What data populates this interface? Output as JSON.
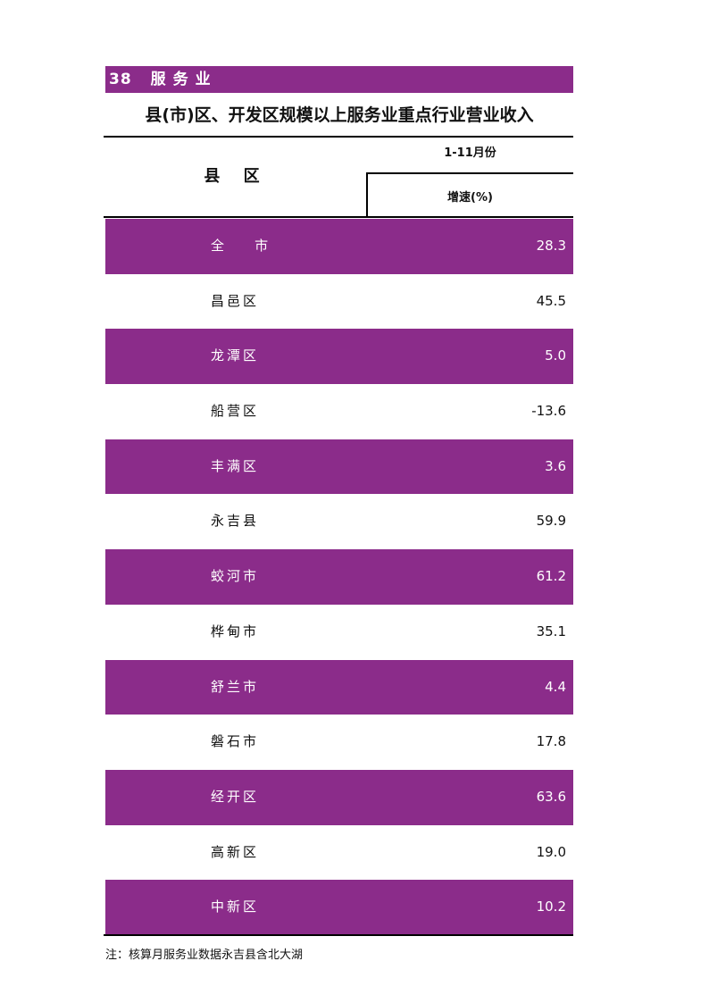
{
  "section": {
    "number": "38",
    "name": "服务业"
  },
  "title": "县(市)区、开发区规模以上服务业重点行业营业收入",
  "header": {
    "county": "县 区",
    "period": "1-11月份",
    "growth": "增速(%)"
  },
  "rows": [
    {
      "name": "全    市",
      "value": "28.3"
    },
    {
      "name": "昌邑区",
      "value": "45.5"
    },
    {
      "name": "龙潭区",
      "value": "5.0"
    },
    {
      "name": "船营区",
      "value": "-13.6"
    },
    {
      "name": "丰满区",
      "value": "3.6"
    },
    {
      "name": "永吉县",
      "value": "59.9"
    },
    {
      "name": "蛟河市",
      "value": "61.2"
    },
    {
      "name": "桦甸市",
      "value": "35.1"
    },
    {
      "name": "舒兰市",
      "value": "4.4"
    },
    {
      "name": "磐石市",
      "value": "17.8"
    },
    {
      "name": "经开区",
      "value": "63.6"
    },
    {
      "name": "高新区",
      "value": "19.0"
    },
    {
      "name": "中新区",
      "value": "10.2"
    }
  ],
  "note": "注：核算月服务业数据永吉县含北大湖",
  "colors": {
    "accent": "#8b2c8a"
  }
}
